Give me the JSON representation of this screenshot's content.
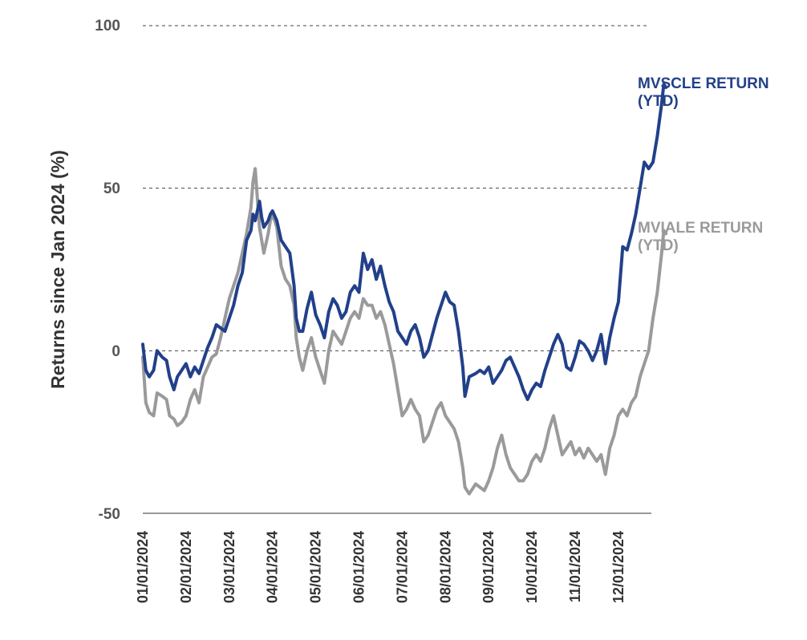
{
  "chart_data": {
    "type": "line",
    "title": "",
    "xlabel": "",
    "ylabel": "Returns since Jan 2024 (%)",
    "ylim": [
      -50,
      100
    ],
    "yticks": [
      "100",
      "50",
      "0",
      "-50"
    ],
    "grid": "dashed horizontal",
    "x_tick_labels": [
      "01/01/2024",
      "02/01/2024",
      "03/01/2024",
      "04/01/2024",
      "05/01/2024",
      "06/01/2024",
      "07/01/2024",
      "08/01/2024",
      "09/01/2024",
      "10/01/2024",
      "11/01/2024",
      "12/01/2024"
    ],
    "x_unit": "months since 01/01/2024",
    "series": [
      {
        "name": "MVSCLE RETURN (YTD)",
        "label_lines": [
          "MVSCLE RETURN",
          "(YTD)"
        ],
        "color": "#22408a",
        "points": [
          [
            0.0,
            2
          ],
          [
            0.07,
            -6
          ],
          [
            0.15,
            -8
          ],
          [
            0.25,
            -6
          ],
          [
            0.33,
            0
          ],
          [
            0.45,
            -2
          ],
          [
            0.55,
            -3
          ],
          [
            0.62,
            -8
          ],
          [
            0.72,
            -12
          ],
          [
            0.8,
            -8
          ],
          [
            0.9,
            -6
          ],
          [
            1.0,
            -4
          ],
          [
            1.1,
            -8
          ],
          [
            1.2,
            -5
          ],
          [
            1.3,
            -7
          ],
          [
            1.4,
            -3
          ],
          [
            1.5,
            1
          ],
          [
            1.6,
            4
          ],
          [
            1.7,
            8
          ],
          [
            1.8,
            7
          ],
          [
            1.9,
            6
          ],
          [
            2.0,
            10
          ],
          [
            2.1,
            14
          ],
          [
            2.2,
            20
          ],
          [
            2.3,
            24
          ],
          [
            2.4,
            34
          ],
          [
            2.5,
            37
          ],
          [
            2.55,
            42
          ],
          [
            2.6,
            40
          ],
          [
            2.7,
            46
          ],
          [
            2.75,
            41
          ],
          [
            2.8,
            38
          ],
          [
            2.9,
            40
          ],
          [
            2.95,
            42
          ],
          [
            3.0,
            43
          ],
          [
            3.1,
            40
          ],
          [
            3.2,
            34
          ],
          [
            3.3,
            32
          ],
          [
            3.4,
            30
          ],
          [
            3.5,
            20
          ],
          [
            3.55,
            10
          ],
          [
            3.62,
            6
          ],
          [
            3.7,
            6
          ],
          [
            3.8,
            13
          ],
          [
            3.9,
            18
          ],
          [
            4.0,
            11
          ],
          [
            4.1,
            8
          ],
          [
            4.2,
            4
          ],
          [
            4.3,
            12
          ],
          [
            4.4,
            16
          ],
          [
            4.5,
            14
          ],
          [
            4.6,
            10
          ],
          [
            4.7,
            12
          ],
          [
            4.8,
            18
          ],
          [
            4.9,
            20
          ],
          [
            5.0,
            18
          ],
          [
            5.1,
            30
          ],
          [
            5.2,
            25
          ],
          [
            5.3,
            28
          ],
          [
            5.4,
            22
          ],
          [
            5.5,
            26
          ],
          [
            5.6,
            20
          ],
          [
            5.7,
            15
          ],
          [
            5.8,
            12
          ],
          [
            5.9,
            6
          ],
          [
            6.0,
            4
          ],
          [
            6.1,
            2
          ],
          [
            6.2,
            6
          ],
          [
            6.3,
            8
          ],
          [
            6.4,
            4
          ],
          [
            6.5,
            -2
          ],
          [
            6.6,
            0
          ],
          [
            6.7,
            5
          ],
          [
            6.8,
            10
          ],
          [
            6.9,
            14
          ],
          [
            7.0,
            18
          ],
          [
            7.1,
            15
          ],
          [
            7.2,
            14
          ],
          [
            7.3,
            6
          ],
          [
            7.4,
            -5
          ],
          [
            7.45,
            -14
          ],
          [
            7.55,
            -8
          ],
          [
            7.7,
            -7
          ],
          [
            7.8,
            -6
          ],
          [
            7.9,
            -7
          ],
          [
            8.0,
            -5
          ],
          [
            8.1,
            -10
          ],
          [
            8.2,
            -8
          ],
          [
            8.3,
            -6
          ],
          [
            8.4,
            -3
          ],
          [
            8.5,
            -2
          ],
          [
            8.6,
            -5
          ],
          [
            8.7,
            -8
          ],
          [
            8.8,
            -12
          ],
          [
            8.9,
            -15
          ],
          [
            9.0,
            -12
          ],
          [
            9.1,
            -10
          ],
          [
            9.2,
            -11
          ],
          [
            9.3,
            -6
          ],
          [
            9.4,
            -2
          ],
          [
            9.5,
            2
          ],
          [
            9.6,
            5
          ],
          [
            9.7,
            2
          ],
          [
            9.8,
            -5
          ],
          [
            9.9,
            -6
          ],
          [
            10.0,
            -2
          ],
          [
            10.1,
            3
          ],
          [
            10.2,
            2
          ],
          [
            10.3,
            0
          ],
          [
            10.4,
            -3
          ],
          [
            10.5,
            0
          ],
          [
            10.6,
            5
          ],
          [
            10.7,
            -4
          ],
          [
            10.8,
            4
          ],
          [
            10.9,
            10
          ],
          [
            11.0,
            15
          ],
          [
            11.1,
            32
          ],
          [
            11.2,
            31
          ],
          [
            11.3,
            36
          ],
          [
            11.4,
            42
          ],
          [
            11.5,
            50
          ],
          [
            11.6,
            58
          ],
          [
            11.7,
            56
          ],
          [
            11.8,
            58
          ],
          [
            11.9,
            66
          ],
          [
            12.0,
            76
          ],
          [
            12.05,
            82
          ],
          [
            12.1,
            81
          ]
        ]
      },
      {
        "name": "MVIALE RETURN (YTD)",
        "label_lines": [
          "MVIALE RETURN",
          "(YTD)"
        ],
        "color": "#9a9a9c",
        "points": [
          [
            0.0,
            -2
          ],
          [
            0.07,
            -16
          ],
          [
            0.15,
            -19
          ],
          [
            0.25,
            -20
          ],
          [
            0.33,
            -13
          ],
          [
            0.45,
            -14
          ],
          [
            0.55,
            -15
          ],
          [
            0.62,
            -20
          ],
          [
            0.72,
            -21
          ],
          [
            0.8,
            -23
          ],
          [
            0.9,
            -22
          ],
          [
            1.0,
            -20
          ],
          [
            1.1,
            -15
          ],
          [
            1.2,
            -12
          ],
          [
            1.3,
            -16
          ],
          [
            1.4,
            -8
          ],
          [
            1.5,
            -5
          ],
          [
            1.6,
            -2
          ],
          [
            1.7,
            -1
          ],
          [
            1.8,
            4
          ],
          [
            1.9,
            10
          ],
          [
            2.0,
            16
          ],
          [
            2.1,
            20
          ],
          [
            2.2,
            24
          ],
          [
            2.3,
            30
          ],
          [
            2.4,
            36
          ],
          [
            2.5,
            44
          ],
          [
            2.55,
            52
          ],
          [
            2.6,
            56
          ],
          [
            2.7,
            38
          ],
          [
            2.75,
            34
          ],
          [
            2.8,
            30
          ],
          [
            2.9,
            36
          ],
          [
            2.95,
            40
          ],
          [
            3.0,
            42
          ],
          [
            3.1,
            38
          ],
          [
            3.2,
            26
          ],
          [
            3.3,
            22
          ],
          [
            3.4,
            20
          ],
          [
            3.5,
            14
          ],
          [
            3.55,
            4
          ],
          [
            3.62,
            -2
          ],
          [
            3.7,
            -6
          ],
          [
            3.8,
            0
          ],
          [
            3.9,
            4
          ],
          [
            4.0,
            -2
          ],
          [
            4.1,
            -6
          ],
          [
            4.2,
            -10
          ],
          [
            4.3,
            0
          ],
          [
            4.4,
            6
          ],
          [
            4.5,
            4
          ],
          [
            4.6,
            2
          ],
          [
            4.7,
            6
          ],
          [
            4.8,
            10
          ],
          [
            4.9,
            12
          ],
          [
            5.0,
            10
          ],
          [
            5.1,
            16
          ],
          [
            5.2,
            14
          ],
          [
            5.3,
            14
          ],
          [
            5.4,
            10
          ],
          [
            5.5,
            12
          ],
          [
            5.6,
            8
          ],
          [
            5.7,
            2
          ],
          [
            5.8,
            -4
          ],
          [
            5.9,
            -12
          ],
          [
            6.0,
            -20
          ],
          [
            6.1,
            -18
          ],
          [
            6.2,
            -15
          ],
          [
            6.3,
            -18
          ],
          [
            6.4,
            -20
          ],
          [
            6.5,
            -28
          ],
          [
            6.6,
            -26
          ],
          [
            6.7,
            -22
          ],
          [
            6.8,
            -18
          ],
          [
            6.9,
            -16
          ],
          [
            7.0,
            -20
          ],
          [
            7.1,
            -22
          ],
          [
            7.2,
            -24
          ],
          [
            7.3,
            -28
          ],
          [
            7.4,
            -36
          ],
          [
            7.45,
            -42
          ],
          [
            7.55,
            -44
          ],
          [
            7.7,
            -41
          ],
          [
            7.8,
            -42
          ],
          [
            7.9,
            -43
          ],
          [
            8.0,
            -40
          ],
          [
            8.1,
            -36
          ],
          [
            8.2,
            -30
          ],
          [
            8.3,
            -26
          ],
          [
            8.4,
            -32
          ],
          [
            8.5,
            -36
          ],
          [
            8.6,
            -38
          ],
          [
            8.7,
            -40
          ],
          [
            8.8,
            -40
          ],
          [
            8.9,
            -38
          ],
          [
            9.0,
            -34
          ],
          [
            9.1,
            -32
          ],
          [
            9.2,
            -34
          ],
          [
            9.3,
            -30
          ],
          [
            9.4,
            -24
          ],
          [
            9.5,
            -20
          ],
          [
            9.6,
            -26
          ],
          [
            9.7,
            -32
          ],
          [
            9.8,
            -30
          ],
          [
            9.9,
            -28
          ],
          [
            10.0,
            -32
          ],
          [
            10.1,
            -30
          ],
          [
            10.2,
            -33
          ],
          [
            10.3,
            -30
          ],
          [
            10.4,
            -32
          ],
          [
            10.5,
            -34
          ],
          [
            10.6,
            -32
          ],
          [
            10.7,
            -38
          ],
          [
            10.8,
            -30
          ],
          [
            10.9,
            -26
          ],
          [
            11.0,
            -20
          ],
          [
            11.1,
            -18
          ],
          [
            11.2,
            -20
          ],
          [
            11.3,
            -16
          ],
          [
            11.4,
            -14
          ],
          [
            11.5,
            -8
          ],
          [
            11.6,
            -4
          ],
          [
            11.7,
            0
          ],
          [
            11.8,
            10
          ],
          [
            11.9,
            18
          ],
          [
            12.0,
            30
          ],
          [
            12.05,
            37
          ],
          [
            12.1,
            36
          ]
        ]
      }
    ]
  }
}
